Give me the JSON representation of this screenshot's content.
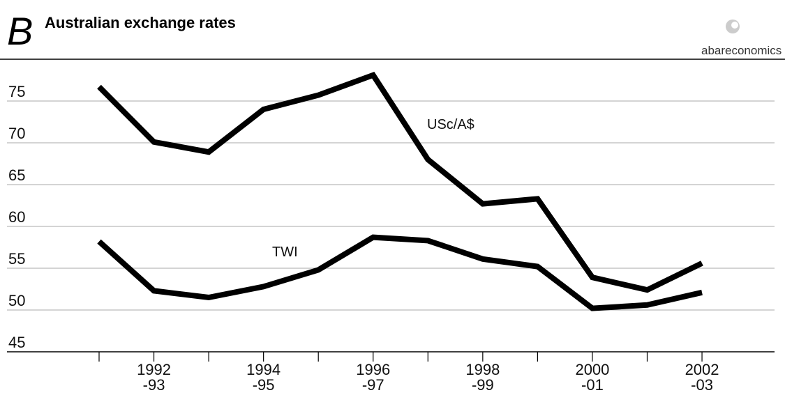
{
  "chart_data": {
    "type": "line",
    "letter": "B",
    "title": "Australian exchange rates",
    "brand": "abareconomics",
    "categories": [
      null,
      "1992\n-93",
      null,
      "1994\n-95",
      null,
      "1996\n-97",
      null,
      "1998\n-99",
      null,
      "2000\n-01",
      null,
      "2002\n-03"
    ],
    "series": [
      {
        "name": "USc/A$",
        "color": "#000000",
        "values": [
          76.7,
          70.1,
          68.9,
          74.0,
          75.7,
          78.1,
          68.0,
          62.7,
          63.3,
          53.9,
          52.4,
          55.6
        ]
      },
      {
        "name": "TWI",
        "color": "#000000",
        "values": [
          58.2,
          52.3,
          51.5,
          52.8,
          54.8,
          58.7,
          58.3,
          56.1,
          55.2,
          50.2,
          50.6,
          52.1
        ]
      }
    ],
    "ylim": [
      45,
      80
    ],
    "yticks": [
      45,
      50,
      55,
      60,
      65,
      70,
      75
    ],
    "grid": true
  }
}
